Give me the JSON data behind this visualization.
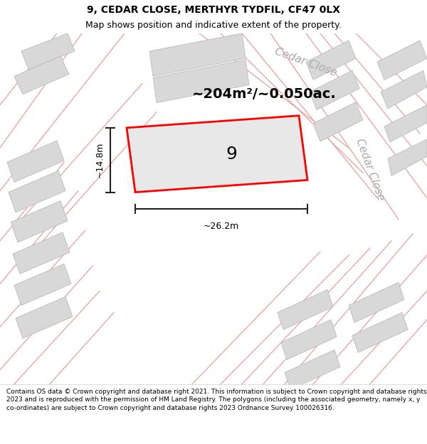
{
  "title_line1": "9, CEDAR CLOSE, MERTHYR TYDFIL, CF47 0LX",
  "title_line2": "Map shows position and indicative extent of the property.",
  "footer_text": "Contains OS data © Crown copyright and database right 2021. This information is subject to Crown copyright and database rights 2023 and is reproduced with the permission of HM Land Registry. The polygons (including the associated geometry, namely x, y co-ordinates) are subject to Crown copyright and database rights 2023 Ordnance Survey 100026316.",
  "area_label": "~204m²/~0.050ac.",
  "number_label": "9",
  "width_label": "~26.2m",
  "height_label": "~14.8m",
  "street_label_upper": "Cedar Close",
  "street_label_right": "Cedar Close",
  "map_bg": "#f0eeee",
  "building_fill": "#d8d8d8",
  "building_stroke": "#bbbbbb",
  "road_line_color": "#e8a8a8",
  "road_fill": "#f0e8e8",
  "property_fill": "#e8e8e8",
  "property_stroke": "#ff0000",
  "dim_line_color": "#222222",
  "street_text_color": "#aaaaaa",
  "title_fontsize": 10,
  "subtitle_fontsize": 9,
  "area_fontsize": 14,
  "number_fontsize": 18,
  "dim_fontsize": 9,
  "street_fontsize": 11,
  "footer_fontsize": 6.5
}
